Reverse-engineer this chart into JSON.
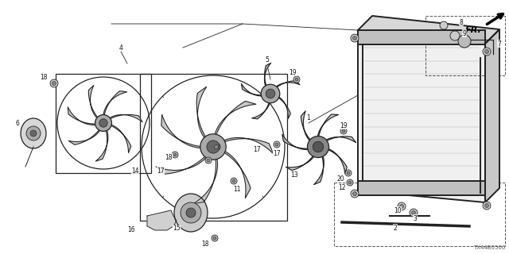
{
  "bg_color": "#ffffff",
  "line_color": "#222222",
  "diagram_code": "TX44B0500",
  "fig_w": 6.4,
  "fig_h": 3.2,
  "dpi": 100
}
